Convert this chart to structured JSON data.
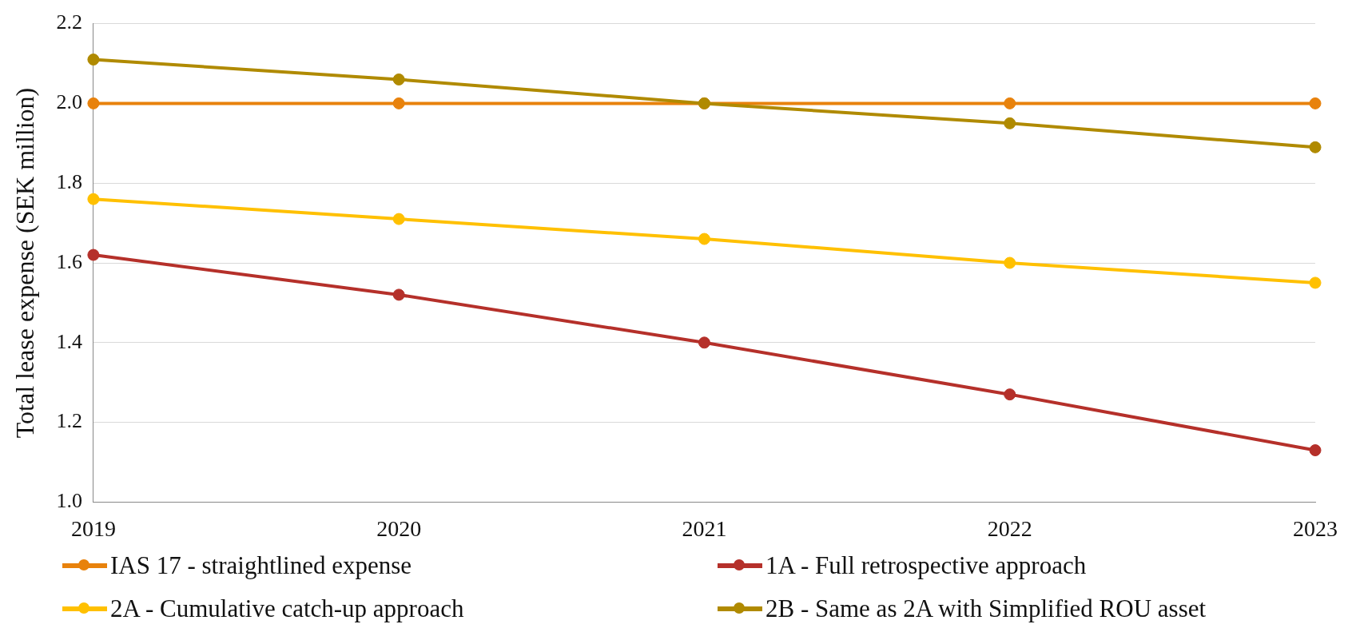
{
  "chart_data": {
    "type": "line",
    "ylabel": "Total lease expense (SEK million)",
    "categories": [
      "2019",
      "2020",
      "2021",
      "2022",
      "2023"
    ],
    "ylim": [
      1.0,
      2.2
    ],
    "yticks": [
      {
        "value": 1.0,
        "label": "1.0"
      },
      {
        "value": 1.2,
        "label": "1.2"
      },
      {
        "value": 1.4,
        "label": "1.4"
      },
      {
        "value": 1.6,
        "label": "1.6"
      },
      {
        "value": 1.8,
        "label": "1.8"
      },
      {
        "value": 2.0,
        "label": "2.0"
      },
      {
        "value": 2.2,
        "label": "2.2"
      }
    ],
    "grid": "y",
    "legend": "bottom",
    "marker": "circle",
    "line_style": "solid",
    "series": [
      {
        "name": "IAS 17 - straightlined expense",
        "color": "#e8820c",
        "values": [
          2.0,
          2.0,
          2.0,
          2.0,
          2.0
        ]
      },
      {
        "name": "1A - Full retrospective approach",
        "color": "#b5302a",
        "values": [
          1.62,
          1.52,
          1.4,
          1.27,
          1.13
        ]
      },
      {
        "name": "2A - Cumulative catch-up approach",
        "color": "#ffc000",
        "values": [
          1.76,
          1.71,
          1.66,
          1.6,
          1.55
        ]
      },
      {
        "name": "2B - Same as 2A with Simplified ROU asset",
        "color": "#b08a00",
        "values": [
          2.11,
          2.06,
          2.0,
          1.95,
          1.89
        ]
      }
    ]
  }
}
